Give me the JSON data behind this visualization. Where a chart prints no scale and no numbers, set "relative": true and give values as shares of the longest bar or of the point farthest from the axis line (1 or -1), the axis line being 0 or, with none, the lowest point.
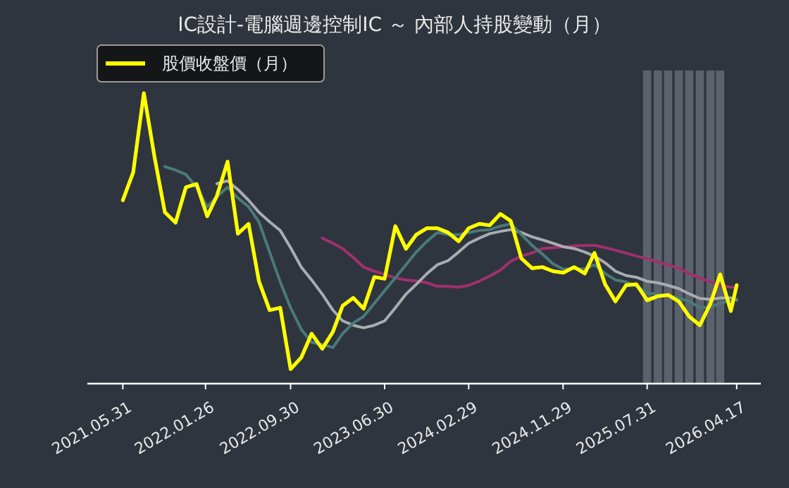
{
  "chart_data": {
    "type": "line",
    "title": "IC設計-電腦週邊控制IC ～ 內部人持股變動（月）",
    "relative": true,
    "legend": "top left",
    "x": [
      "2021-05-31",
      "2021-06-30",
      "2021-07-31",
      "2021-08-31",
      "2021-09-30",
      "2021-10-31",
      "2021-11-30",
      "2021-12-31",
      "2022-01-31",
      "2022-02-28",
      "2022-03-31",
      "2022-04-30",
      "2022-05-31",
      "2022-06-30",
      "2022-07-31",
      "2022-08-31",
      "2022-09-30",
      "2022-10-31",
      "2022-11-30",
      "2022-12-31",
      "2023-01-31",
      "2023-02-28",
      "2023-03-31",
      "2023-04-30",
      "2023-05-31",
      "2023-06-30",
      "2023-07-31",
      "2023-08-31",
      "2023-09-30",
      "2023-10-31",
      "2023-11-30",
      "2023-12-31",
      "2024-01-31",
      "2024-02-29",
      "2024-03-31",
      "2024-04-30",
      "2024-05-31",
      "2024-06-30",
      "2024-07-31",
      "2024-08-31",
      "2024-09-30",
      "2024-10-31",
      "2024-11-30",
      "2024-12-31",
      "2025-01-31",
      "2025-02-28",
      "2025-03-31",
      "2025-04-30",
      "2025-05-31",
      "2025-06-30",
      "2025-07-31",
      "2025-08-31",
      "2025-09-30",
      "2025-10-31",
      "2025-11-30",
      "2025-12-31",
      "2026-01-31",
      "2026-02-28",
      "2026-03-31",
      "2026-04-17"
    ],
    "xlim": [
      "2021-02-17",
      "2026-06-26"
    ],
    "xticks": [
      {
        "value": "2021-05-31",
        "label": "2021.05.31"
      },
      {
        "value": "2022-01-26",
        "label": "2022.01.26"
      },
      {
        "value": "2022-09-30",
        "label": "2022.09.30"
      },
      {
        "value": "2023-06-30",
        "label": "2023.06.30"
      },
      {
        "value": "2024-02-29",
        "label": "2024.02.29"
      },
      {
        "value": "2024-11-29",
        "label": "2024.11.29"
      },
      {
        "value": "2025-07-31",
        "label": "2025.07.31"
      },
      {
        "value": "2026-04-17",
        "label": "2026.04.17"
      }
    ],
    "bands": [
      {
        "axis": "x",
        "from": "2025-07-19",
        "to": "2025-08-12",
        "color": "#646a73"
      },
      {
        "axis": "x",
        "from": "2025-08-19",
        "to": "2025-09-12",
        "color": "#646a73"
      },
      {
        "axis": "x",
        "from": "2025-09-18",
        "to": "2025-10-12",
        "color": "#646a73"
      },
      {
        "axis": "x",
        "from": "2025-10-19",
        "to": "2025-11-12",
        "color": "#646a73"
      },
      {
        "axis": "x",
        "from": "2025-11-18",
        "to": "2025-12-12",
        "color": "#646a73"
      },
      {
        "axis": "x",
        "from": "2025-12-19",
        "to": "2026-01-12",
        "color": "#646a73"
      },
      {
        "axis": "x",
        "from": "2026-01-19",
        "to": "2026-02-12",
        "color": "#646a73"
      },
      {
        "axis": "x",
        "from": "2026-02-16",
        "to": "2026-03-12",
        "color": "#646a73"
      }
    ],
    "series": [
      {
        "color": "#a0306e",
        "values": [
          null,
          null,
          null,
          null,
          null,
          null,
          null,
          null,
          null,
          null,
          null,
          null,
          null,
          null,
          null,
          null,
          null,
          null,
          null,
          0.501,
          0.483,
          0.465,
          0.434,
          0.401,
          0.387,
          0.376,
          0.364,
          0.357,
          0.353,
          0.347,
          0.335,
          0.335,
          0.332,
          0.338,
          0.353,
          0.37,
          0.391,
          0.421,
          0.439,
          0.45,
          0.465,
          0.468,
          0.471,
          0.474,
          0.476,
          0.476,
          0.468,
          0.459,
          0.449,
          0.439,
          0.43,
          0.419,
          0.409,
          0.397,
          0.379,
          0.364,
          0.35,
          0.338,
          0.332,
          0.332
        ]
      },
      {
        "color": "#a9acb0",
        "values": [
          null,
          null,
          null,
          null,
          null,
          null,
          null,
          null,
          null,
          0.688,
          0.698,
          0.668,
          0.631,
          0.59,
          0.557,
          0.527,
          0.468,
          0.401,
          0.357,
          0.308,
          0.253,
          0.216,
          0.201,
          0.192,
          0.201,
          0.216,
          0.261,
          0.308,
          0.342,
          0.379,
          0.409,
          0.423,
          0.453,
          0.483,
          0.501,
          0.516,
          0.524,
          0.53,
          0.52,
          0.505,
          0.495,
          0.483,
          0.471,
          0.465,
          0.453,
          0.439,
          0.416,
          0.387,
          0.372,
          0.366,
          0.352,
          0.347,
          0.338,
          0.327,
          0.309,
          0.293,
          0.29,
          0.295,
          0.295,
          0.288
        ]
      },
      {
        "color": "#4a7a7a",
        "values": [
          null,
          null,
          null,
          null,
          0.747,
          0.735,
          0.72,
          0.676,
          0.609,
          0.643,
          0.676,
          0.639,
          0.609,
          0.557,
          0.453,
          0.35,
          0.261,
          0.187,
          0.142,
          0.135,
          0.124,
          0.172,
          0.209,
          0.231,
          0.276,
          0.32,
          0.364,
          0.409,
          0.453,
          0.49,
          0.52,
          0.513,
          0.513,
          0.52,
          0.527,
          0.53,
          0.542,
          0.55,
          0.513,
          0.476,
          0.446,
          0.412,
          0.394,
          0.397,
          0.394,
          0.409,
          0.379,
          0.357,
          0.35,
          0.335,
          0.312,
          0.308,
          0.302,
          0.295,
          0.283,
          0.261,
          0.264,
          0.276,
          0.288,
          0.29
        ]
      },
      {
        "name": "股價收盤價（月）",
        "color": "#ffff00",
        "values": [
          0.631,
          0.727,
          1.0,
          0.78,
          0.59,
          0.554,
          0.676,
          0.687,
          0.576,
          0.646,
          0.764,
          0.516,
          0.55,
          0.353,
          0.253,
          0.261,
          0.05,
          0.09,
          0.172,
          0.12,
          0.179,
          0.268,
          0.295,
          0.258,
          0.367,
          0.361,
          0.542,
          0.464,
          0.513,
          0.535,
          0.535,
          0.52,
          0.49,
          0.535,
          0.55,
          0.545,
          0.584,
          0.56,
          0.431,
          0.397,
          0.401,
          0.387,
          0.382,
          0.401,
          0.379,
          0.45,
          0.342,
          0.283,
          0.339,
          0.342,
          0.287,
          0.301,
          0.305,
          0.283,
          0.231,
          0.201,
          0.276,
          0.376,
          0.25,
          0.339
        ]
      }
    ]
  }
}
